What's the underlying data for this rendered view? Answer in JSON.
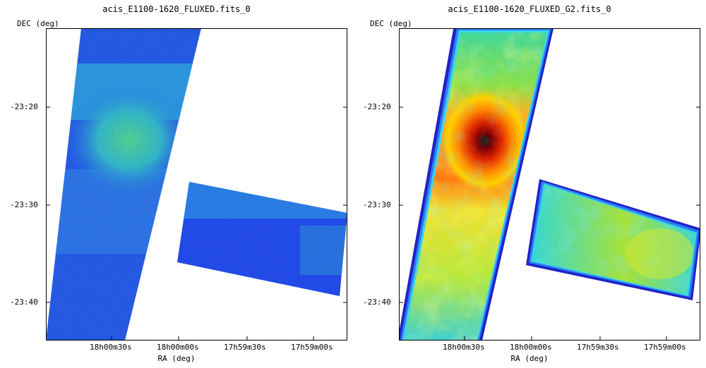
{
  "panels": [
    {
      "title": "acis_E1100-1620_FLUXED.fits_0",
      "ylabel": "DEC (deg)",
      "xlabel": "RA (deg)",
      "yticks": [
        "-23:20",
        "-23:30",
        "-23:40"
      ],
      "xticks": [
        "18h00m30s",
        "18h00m00s",
        "17h59m30s",
        "17h59m00s"
      ],
      "colormap": "blue-noisy"
    },
    {
      "title": "acis_E1100-1620_FLUXED_G2.fits_0",
      "ylabel": "DEC (deg)",
      "xlabel": "RA (deg)",
      "yticks": [
        "-23:20",
        "-23:30",
        "-23:40"
      ],
      "xticks": [
        "18h00m30s",
        "18h00m00s",
        "17h59m30s",
        "17h59m00s"
      ],
      "colormap": "smoothed-rainbow"
    }
  ]
}
